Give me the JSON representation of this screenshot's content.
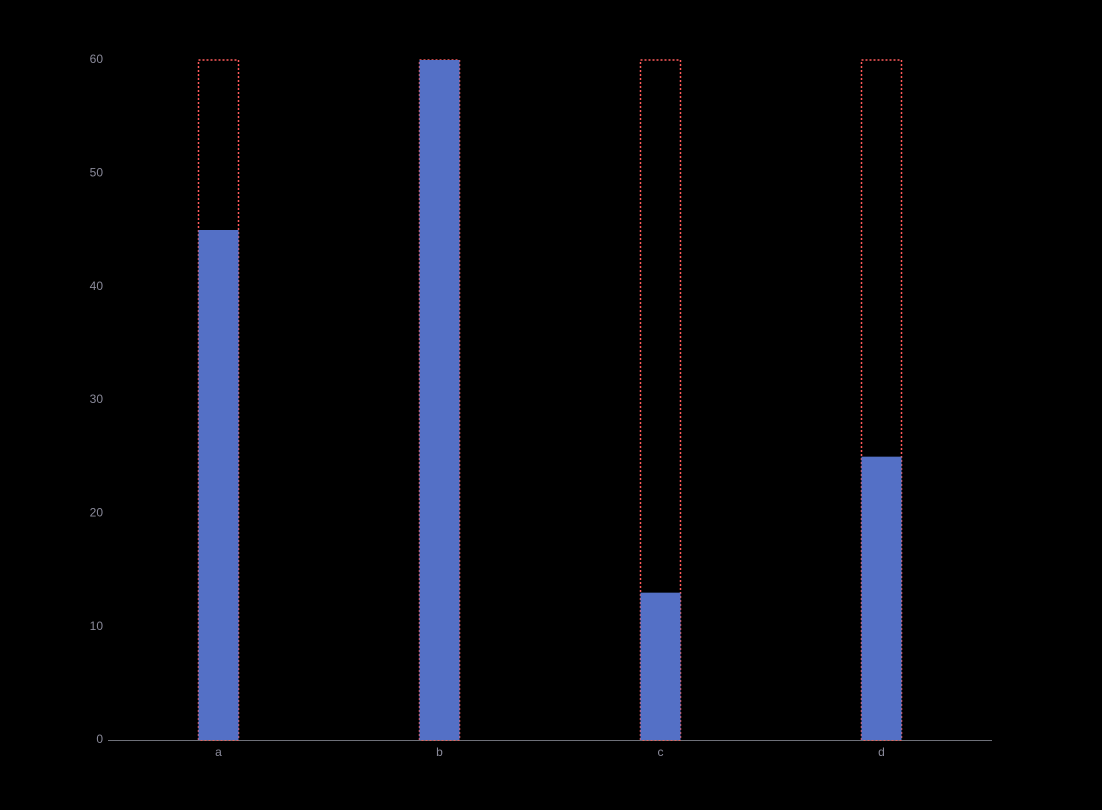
{
  "chart_data": {
    "type": "bar",
    "categories": [
      "a",
      "b",
      "c",
      "d"
    ],
    "values": [
      45,
      60,
      13,
      25
    ],
    "color": "#5470c6",
    "background_values": [
      60,
      60,
      60,
      60
    ],
    "background_color": "#ff5a5a",
    "ylim": [
      0,
      60
    ],
    "yticks": [
      0,
      10,
      20,
      30,
      40,
      50,
      60
    ],
    "grid": false
  }
}
